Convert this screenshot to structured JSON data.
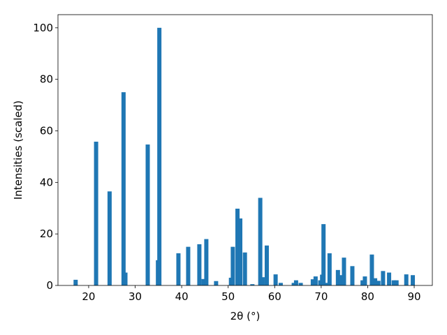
{
  "chart_data": {
    "type": "bar",
    "xlabel": "2θ (°)",
    "ylabel": "Intensities (scaled)",
    "color": "#1f77b4",
    "x": [
      17.2,
      21.6,
      24.5,
      27.5,
      27.9,
      32.7,
      34.9,
      35.2,
      39.3,
      41.4,
      43.8,
      44.7,
      45.3,
      47.4,
      50.6,
      51.0,
      52.0,
      52.6,
      53.6,
      55.2,
      56.9,
      57.4,
      58.3,
      60.2,
      61.3,
      64.1,
      64.6,
      65.6,
      68.2,
      68.8,
      69.8,
      70.2,
      70.5,
      71.1,
      71.8,
      73.6,
      74.1,
      74.9,
      76.7,
      78.9,
      79.4,
      80.9,
      81.6,
      82.3,
      83.3,
      84.6,
      85.6,
      86.2,
      88.3,
      89.7
    ],
    "values": [
      2.2,
      55.8,
      36.5,
      75,
      5,
      54.7,
      9.8,
      100,
      12.5,
      15,
      16,
      2.5,
      18,
      1.7,
      3,
      15,
      29.8,
      26,
      12.8,
      0.5,
      34,
      3.2,
      15.5,
      4.3,
      1,
      1,
      2,
      1,
      2.4,
      3.5,
      2,
      4.2,
      23.8,
      1,
      12.5,
      6,
      4,
      10.8,
      7.5,
      2,
      3.5,
      12,
      2.8,
      1.8,
      5.6,
      5,
      2,
      2,
      4.3,
      4
    ],
    "xlim": [
      13.4,
      93.9
    ],
    "xticks": [
      20,
      30,
      40,
      50,
      60,
      70,
      80,
      90
    ],
    "ylim": [
      0,
      105.1
    ],
    "yticks": [
      0,
      20,
      40,
      60,
      80,
      100
    ],
    "grid": false
  }
}
